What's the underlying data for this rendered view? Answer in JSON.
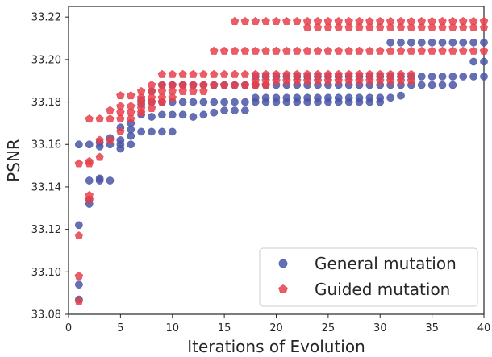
{
  "colors": {
    "general": "#4a56a6",
    "guided": "#e8414b",
    "axis": "#262626",
    "legend_border": "#cccccc"
  },
  "chart_data": {
    "type": "scatter",
    "title": "",
    "xlabel": "Iterations of Evolution",
    "ylabel": "PSNR",
    "xlim": [
      0,
      40
    ],
    "ylim": [
      33.08,
      33.225
    ],
    "xticks": [
      "0",
      "5",
      "10",
      "15",
      "20",
      "25",
      "30",
      "35",
      "40"
    ],
    "yticks": [
      "33.08",
      "33.10",
      "33.12",
      "33.14",
      "33.16",
      "33.18",
      "33.20",
      "33.22"
    ],
    "grid": false,
    "legend_position": "lower-right",
    "series": [
      {
        "name": "General mutation",
        "marker": "circle",
        "points": [
          [
            1,
            33.087
          ],
          [
            1,
            33.094
          ],
          [
            1,
            33.122
          ],
          [
            1,
            33.16
          ],
          [
            2,
            33.132
          ],
          [
            2,
            33.134
          ],
          [
            2,
            33.143
          ],
          [
            2,
            33.16
          ],
          [
            3,
            33.143
          ],
          [
            3,
            33.144
          ],
          [
            3,
            33.159
          ],
          [
            3,
            33.161
          ],
          [
            4,
            33.143
          ],
          [
            4,
            33.16
          ],
          [
            4,
            33.163
          ],
          [
            5,
            33.158
          ],
          [
            5,
            33.16
          ],
          [
            5,
            33.162
          ],
          [
            5,
            33.168
          ],
          [
            6,
            33.16
          ],
          [
            6,
            33.164
          ],
          [
            6,
            33.167
          ],
          [
            6,
            33.17
          ],
          [
            7,
            33.166
          ],
          [
            7,
            33.174
          ],
          [
            7,
            33.179
          ],
          [
            7,
            33.181
          ],
          [
            8,
            33.166
          ],
          [
            8,
            33.173
          ],
          [
            8,
            33.18
          ],
          [
            8,
            33.185
          ],
          [
            9,
            33.166
          ],
          [
            9,
            33.174
          ],
          [
            9,
            33.18
          ],
          [
            9,
            33.188
          ],
          [
            10,
            33.166
          ],
          [
            10,
            33.174
          ],
          [
            10,
            33.18
          ],
          [
            10,
            33.188
          ],
          [
            11,
            33.174
          ],
          [
            11,
            33.18
          ],
          [
            11,
            33.188
          ],
          [
            12,
            33.173
          ],
          [
            12,
            33.18
          ],
          [
            12,
            33.188
          ],
          [
            13,
            33.174
          ],
          [
            13,
            33.18
          ],
          [
            13,
            33.188
          ],
          [
            14,
            33.175
          ],
          [
            14,
            33.18
          ],
          [
            14,
            33.188
          ],
          [
            15,
            33.176
          ],
          [
            15,
            33.18
          ],
          [
            15,
            33.188
          ],
          [
            16,
            33.176
          ],
          [
            16,
            33.18
          ],
          [
            16,
            33.188
          ],
          [
            17,
            33.176
          ],
          [
            17,
            33.18
          ],
          [
            17,
            33.188
          ],
          [
            18,
            33.18
          ],
          [
            18,
            33.182
          ],
          [
            18,
            33.188
          ],
          [
            18,
            33.192
          ],
          [
            19,
            33.18
          ],
          [
            19,
            33.182
          ],
          [
            19,
            33.188
          ],
          [
            19,
            33.192
          ],
          [
            20,
            33.18
          ],
          [
            20,
            33.182
          ],
          [
            20,
            33.188
          ],
          [
            20,
            33.192
          ],
          [
            21,
            33.18
          ],
          [
            21,
            33.182
          ],
          [
            21,
            33.188
          ],
          [
            21,
            33.192
          ],
          [
            22,
            33.18
          ],
          [
            22,
            33.182
          ],
          [
            22,
            33.188
          ],
          [
            22,
            33.192
          ],
          [
            23,
            33.18
          ],
          [
            23,
            33.182
          ],
          [
            23,
            33.188
          ],
          [
            23,
            33.192
          ],
          [
            24,
            33.18
          ],
          [
            24,
            33.182
          ],
          [
            24,
            33.188
          ],
          [
            24,
            33.192
          ],
          [
            25,
            33.18
          ],
          [
            25,
            33.182
          ],
          [
            25,
            33.188
          ],
          [
            25,
            33.192
          ],
          [
            26,
            33.18
          ],
          [
            26,
            33.182
          ],
          [
            26,
            33.188
          ],
          [
            26,
            33.192
          ],
          [
            27,
            33.18
          ],
          [
            27,
            33.182
          ],
          [
            27,
            33.188
          ],
          [
            27,
            33.192
          ],
          [
            28,
            33.18
          ],
          [
            28,
            33.182
          ],
          [
            28,
            33.188
          ],
          [
            28,
            33.192
          ],
          [
            29,
            33.18
          ],
          [
            29,
            33.182
          ],
          [
            29,
            33.188
          ],
          [
            29,
            33.192
          ],
          [
            30,
            33.18
          ],
          [
            30,
            33.182
          ],
          [
            30,
            33.188
          ],
          [
            30,
            33.192
          ],
          [
            31,
            33.182
          ],
          [
            31,
            33.188
          ],
          [
            31,
            33.192
          ],
          [
            31,
            33.208
          ],
          [
            32,
            33.183
          ],
          [
            32,
            33.188
          ],
          [
            32,
            33.192
          ],
          [
            32,
            33.208
          ],
          [
            33,
            33.188
          ],
          [
            33,
            33.192
          ],
          [
            33,
            33.208
          ],
          [
            34,
            33.188
          ],
          [
            34,
            33.192
          ],
          [
            34,
            33.208
          ],
          [
            35,
            33.188
          ],
          [
            35,
            33.192
          ],
          [
            35,
            33.208
          ],
          [
            36,
            33.188
          ],
          [
            36,
            33.192
          ],
          [
            36,
            33.208
          ],
          [
            37,
            33.188
          ],
          [
            37,
            33.192
          ],
          [
            37,
            33.208
          ],
          [
            38,
            33.192
          ],
          [
            38,
            33.208
          ],
          [
            39,
            33.192
          ],
          [
            39,
            33.199
          ],
          [
            39,
            33.208
          ],
          [
            40,
            33.192
          ],
          [
            40,
            33.199
          ],
          [
            40,
            33.208
          ]
        ]
      },
      {
        "name": "Guided mutation",
        "marker": "pentagon",
        "points": [
          [
            1,
            33.086
          ],
          [
            1,
            33.098
          ],
          [
            1,
            33.117
          ],
          [
            1,
            33.151
          ],
          [
            2,
            33.134
          ],
          [
            2,
            33.136
          ],
          [
            2,
            33.151
          ],
          [
            2,
            33.152
          ],
          [
            2,
            33.172
          ],
          [
            3,
            33.154
          ],
          [
            3,
            33.162
          ],
          [
            3,
            33.172
          ],
          [
            4,
            33.162
          ],
          [
            4,
            33.172
          ],
          [
            4,
            33.176
          ],
          [
            5,
            33.166
          ],
          [
            5,
            33.172
          ],
          [
            5,
            33.175
          ],
          [
            5,
            33.178
          ],
          [
            5,
            33.183
          ],
          [
            6,
            33.172
          ],
          [
            6,
            33.175
          ],
          [
            6,
            33.178
          ],
          [
            6,
            33.183
          ],
          [
            7,
            33.175
          ],
          [
            7,
            33.177
          ],
          [
            7,
            33.18
          ],
          [
            7,
            33.182
          ],
          [
            7,
            33.185
          ],
          [
            8,
            33.177
          ],
          [
            8,
            33.18
          ],
          [
            8,
            33.182
          ],
          [
            8,
            33.185
          ],
          [
            8,
            33.188
          ],
          [
            9,
            33.18
          ],
          [
            9,
            33.182
          ],
          [
            9,
            33.185
          ],
          [
            9,
            33.188
          ],
          [
            9,
            33.193
          ],
          [
            10,
            33.182
          ],
          [
            10,
            33.185
          ],
          [
            10,
            33.188
          ],
          [
            10,
            33.193
          ],
          [
            11,
            33.185
          ],
          [
            11,
            33.188
          ],
          [
            11,
            33.193
          ],
          [
            12,
            33.185
          ],
          [
            12,
            33.188
          ],
          [
            12,
            33.193
          ],
          [
            13,
            33.185
          ],
          [
            13,
            33.188
          ],
          [
            13,
            33.193
          ],
          [
            14,
            33.188
          ],
          [
            14,
            33.193
          ],
          [
            14,
            33.204
          ],
          [
            15,
            33.188
          ],
          [
            15,
            33.193
          ],
          [
            15,
            33.204
          ],
          [
            16,
            33.188
          ],
          [
            16,
            33.193
          ],
          [
            16,
            33.204
          ],
          [
            16,
            33.218
          ],
          [
            17,
            33.188
          ],
          [
            17,
            33.193
          ],
          [
            17,
            33.204
          ],
          [
            17,
            33.218
          ],
          [
            18,
            33.188
          ],
          [
            18,
            33.19
          ],
          [
            18,
            33.193
          ],
          [
            18,
            33.204
          ],
          [
            18,
            33.218
          ],
          [
            19,
            33.188
          ],
          [
            19,
            33.19
          ],
          [
            19,
            33.193
          ],
          [
            19,
            33.204
          ],
          [
            19,
            33.218
          ],
          [
            20,
            33.19
          ],
          [
            20,
            33.193
          ],
          [
            20,
            33.204
          ],
          [
            20,
            33.218
          ],
          [
            21,
            33.19
          ],
          [
            21,
            33.193
          ],
          [
            21,
            33.204
          ],
          [
            21,
            33.218
          ],
          [
            22,
            33.19
          ],
          [
            22,
            33.193
          ],
          [
            22,
            33.204
          ],
          [
            22,
            33.218
          ],
          [
            23,
            33.19
          ],
          [
            23,
            33.193
          ],
          [
            23,
            33.204
          ],
          [
            23,
            33.215
          ],
          [
            23,
            33.218
          ],
          [
            24,
            33.19
          ],
          [
            24,
            33.193
          ],
          [
            24,
            33.204
          ],
          [
            24,
            33.215
          ],
          [
            24,
            33.218
          ],
          [
            25,
            33.19
          ],
          [
            25,
            33.193
          ],
          [
            25,
            33.204
          ],
          [
            25,
            33.215
          ],
          [
            25,
            33.218
          ],
          [
            26,
            33.19
          ],
          [
            26,
            33.193
          ],
          [
            26,
            33.204
          ],
          [
            26,
            33.215
          ],
          [
            26,
            33.218
          ],
          [
            27,
            33.19
          ],
          [
            27,
            33.193
          ],
          [
            27,
            33.204
          ],
          [
            27,
            33.215
          ],
          [
            27,
            33.218
          ],
          [
            28,
            33.19
          ],
          [
            28,
            33.193
          ],
          [
            28,
            33.204
          ],
          [
            28,
            33.215
          ],
          [
            28,
            33.218
          ],
          [
            29,
            33.19
          ],
          [
            29,
            33.193
          ],
          [
            29,
            33.204
          ],
          [
            29,
            33.215
          ],
          [
            29,
            33.218
          ],
          [
            30,
            33.19
          ],
          [
            30,
            33.193
          ],
          [
            30,
            33.204
          ],
          [
            30,
            33.215
          ],
          [
            30,
            33.218
          ],
          [
            31,
            33.19
          ],
          [
            31,
            33.193
          ],
          [
            31,
            33.204
          ],
          [
            31,
            33.215
          ],
          [
            31,
            33.218
          ],
          [
            32,
            33.19
          ],
          [
            32,
            33.193
          ],
          [
            32,
            33.204
          ],
          [
            32,
            33.215
          ],
          [
            32,
            33.218
          ],
          [
            33,
            33.19
          ],
          [
            33,
            33.193
          ],
          [
            33,
            33.204
          ],
          [
            33,
            33.215
          ],
          [
            33,
            33.218
          ],
          [
            34,
            33.204
          ],
          [
            34,
            33.215
          ],
          [
            34,
            33.218
          ],
          [
            35,
            33.204
          ],
          [
            35,
            33.215
          ],
          [
            35,
            33.218
          ],
          [
            36,
            33.204
          ],
          [
            36,
            33.215
          ],
          [
            36,
            33.218
          ],
          [
            37,
            33.204
          ],
          [
            37,
            33.215
          ],
          [
            37,
            33.218
          ],
          [
            38,
            33.204
          ],
          [
            38,
            33.215
          ],
          [
            38,
            33.218
          ],
          [
            39,
            33.204
          ],
          [
            39,
            33.215
          ],
          [
            39,
            33.218
          ],
          [
            40,
            33.204
          ],
          [
            40,
            33.215
          ],
          [
            40,
            33.218
          ]
        ]
      }
    ]
  }
}
